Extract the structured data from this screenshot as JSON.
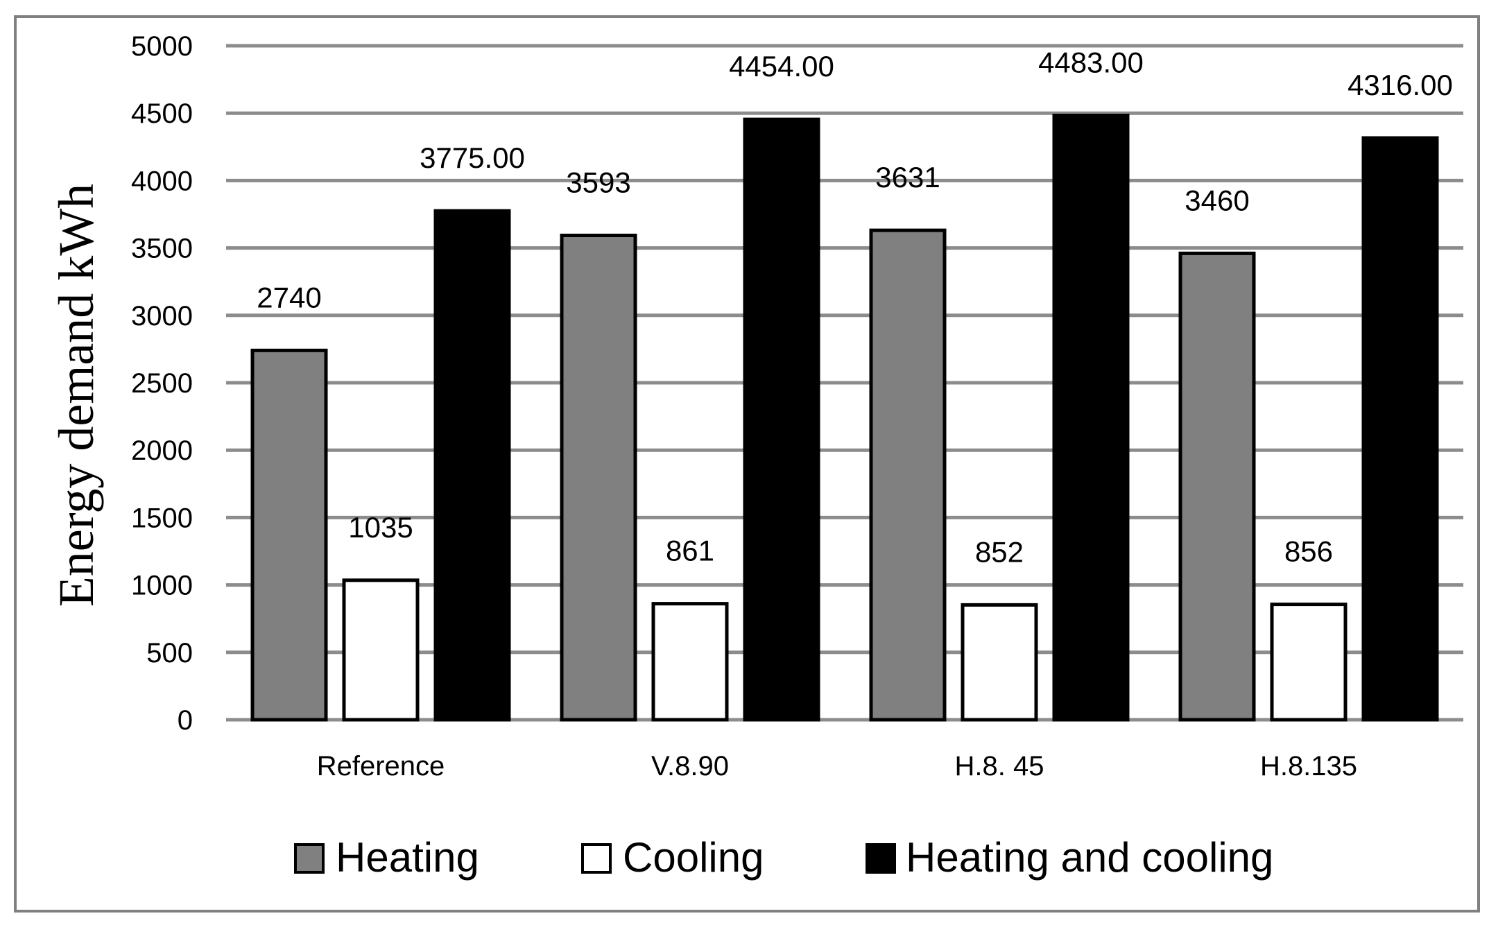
{
  "chart_data": {
    "type": "bar",
    "title": "",
    "xlabel": "",
    "ylabel": "Energy demand kWh",
    "ylim": [
      0,
      5000
    ],
    "ytick_step": 500,
    "grid": true,
    "legend_position": "bottom",
    "categories": [
      "Reference",
      "V.8.90",
      "H.8. 45",
      "H.8.135"
    ],
    "series": [
      {
        "name": "Heating",
        "color": "#808080",
        "values": [
          2740,
          3593,
          3631,
          3460
        ],
        "labels": [
          "2740",
          "3593",
          "3631",
          "3460"
        ]
      },
      {
        "name": "Cooling",
        "color": "#ffffff",
        "values": [
          1035,
          861,
          852,
          856
        ],
        "labels": [
          "1035",
          "861",
          "852",
          "856"
        ]
      },
      {
        "name": "Heating and cooling",
        "color": "#000000",
        "values": [
          3775,
          4454,
          4483,
          4316
        ],
        "labels": [
          "3775.00",
          "4454.00",
          "4483.00",
          "4316.00"
        ]
      }
    ]
  }
}
